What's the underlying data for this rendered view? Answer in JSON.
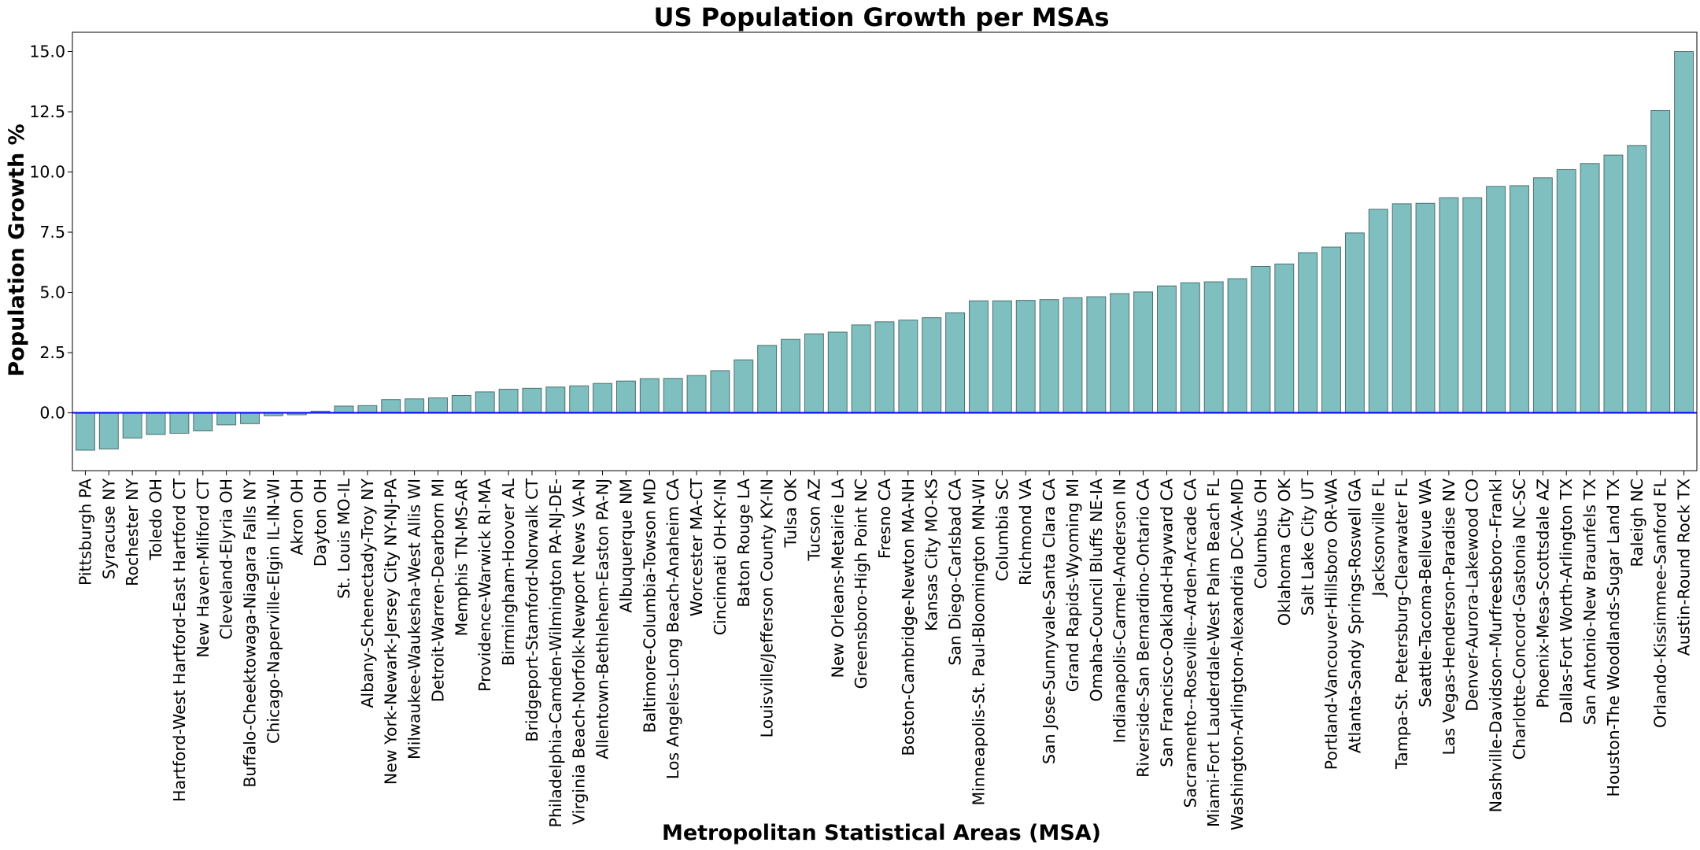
{
  "chart_data": {
    "type": "bar",
    "title": "US Population Growth per MSAs",
    "xlabel": "Metropolitan Statistical Areas (MSA)",
    "ylabel": "Population Growth %",
    "ylim": [
      -2.4,
      15.8
    ],
    "yticks": [
      "0.0",
      "2.5",
      "5.0",
      "7.5",
      "10.0",
      "12.5",
      "15.0"
    ],
    "ytick_values": [
      0,
      2.5,
      5,
      7.5,
      10,
      12.5,
      15
    ],
    "bar_color": "#7fbfbf",
    "bar_edge_color": "#4d6f6f",
    "zero_line_color": "#0000ff",
    "grid": false,
    "categories": [
      "Pittsburgh PA",
      "Syracuse NY",
      "Rochester NY",
      "Toledo OH",
      "Hartford-West Hartford-East Hartford CT",
      "New Haven-Milford CT",
      "Cleveland-Elyria OH",
      "Buffalo-Cheektowaga-Niagara Falls NY",
      "Chicago-Naperville-Elgin IL-IN-WI",
      "Akron OH",
      "Dayton OH",
      "St. Louis MO-IL",
      "Albany-Schenectady-Troy NY",
      "New York-Newark-Jersey City NY-NJ-PA",
      "Milwaukee-Waukesha-West Allis WI",
      "Detroit-Warren-Dearborn MI",
      "Memphis TN-MS-AR",
      "Providence-Warwick RI-MA",
      "Birmingham-Hoover AL",
      "Bridgeport-Stamford-Norwalk CT",
      "Philadelphia-Camden-Wilmington PA-NJ-DE-",
      "Virginia Beach-Norfolk-Newport News VA-N",
      "Allentown-Bethlehem-Easton PA-NJ",
      "Albuquerque NM",
      "Baltimore-Columbia-Towson MD",
      "Los Angeles-Long Beach-Anaheim CA",
      "Worcester MA-CT",
      "Cincinnati OH-KY-IN",
      "Baton Rouge LA",
      "Louisville/Jefferson County KY-IN",
      "Tulsa OK",
      "Tucson AZ",
      "New Orleans-Metairie LA",
      "Greensboro-High Point NC",
      "Fresno CA",
      "Boston-Cambridge-Newton MA-NH",
      "Kansas City MO-KS",
      "San Diego-Carlsbad CA",
      "Minneapolis-St. Paul-Bloomington MN-WI",
      "Columbia SC",
      "Richmond VA",
      "San Jose-Sunnyvale-Santa Clara CA",
      "Grand Rapids-Wyoming MI",
      "Omaha-Council Bluffs NE-IA",
      "Indianapolis-Carmel-Anderson IN",
      "Riverside-San Bernardino-Ontario CA",
      "San Francisco-Oakland-Hayward CA",
      "Sacramento--Roseville--Arden-Arcade CA",
      "Miami-Fort Lauderdale-West Palm Beach FL",
      "Washington-Arlington-Alexandria DC-VA-MD",
      "Columbus OH",
      "Oklahoma City OK",
      "Salt Lake City UT",
      "Portland-Vancouver-Hillsboro OR-WA",
      "Atlanta-Sandy Springs-Roswell GA",
      "Jacksonville FL",
      "Tampa-St. Petersburg-Clearwater FL",
      "Seattle-Tacoma-Bellevue WA",
      "Las Vegas-Henderson-Paradise NV",
      "Denver-Aurora-Lakewood CO",
      "Nashville-Davidson--Murfreesboro--Frankl",
      "Charlotte-Concord-Gastonia NC-SC",
      "Phoenix-Mesa-Scottsdale AZ",
      "Dallas-Fort Worth-Arlington TX",
      "San Antonio-New Braunfels TX",
      "Houston-The Woodlands-Sugar Land TX",
      "Raleigh NC",
      "Orlando-Kissimmee-Sanford FL",
      "Austin-Round Rock TX"
    ],
    "values": [
      -1.55,
      -1.5,
      -1.05,
      -0.9,
      -0.85,
      -0.75,
      -0.5,
      -0.45,
      -0.12,
      -0.08,
      0.07,
      0.28,
      0.3,
      0.55,
      0.58,
      0.62,
      0.72,
      0.87,
      0.98,
      1.02,
      1.07,
      1.12,
      1.22,
      1.32,
      1.42,
      1.43,
      1.55,
      1.75,
      2.2,
      2.8,
      3.05,
      3.28,
      3.35,
      3.65,
      3.78,
      3.85,
      3.95,
      4.15,
      4.65,
      4.65,
      4.67,
      4.7,
      4.78,
      4.82,
      4.95,
      5.02,
      5.27,
      5.4,
      5.44,
      5.57,
      6.08,
      6.18,
      6.65,
      6.88,
      7.47,
      8.45,
      8.68,
      8.7,
      8.93,
      8.93,
      9.4,
      9.43,
      9.76,
      10.1,
      10.35,
      10.7,
      11.1,
      12.55,
      15.0
    ]
  }
}
